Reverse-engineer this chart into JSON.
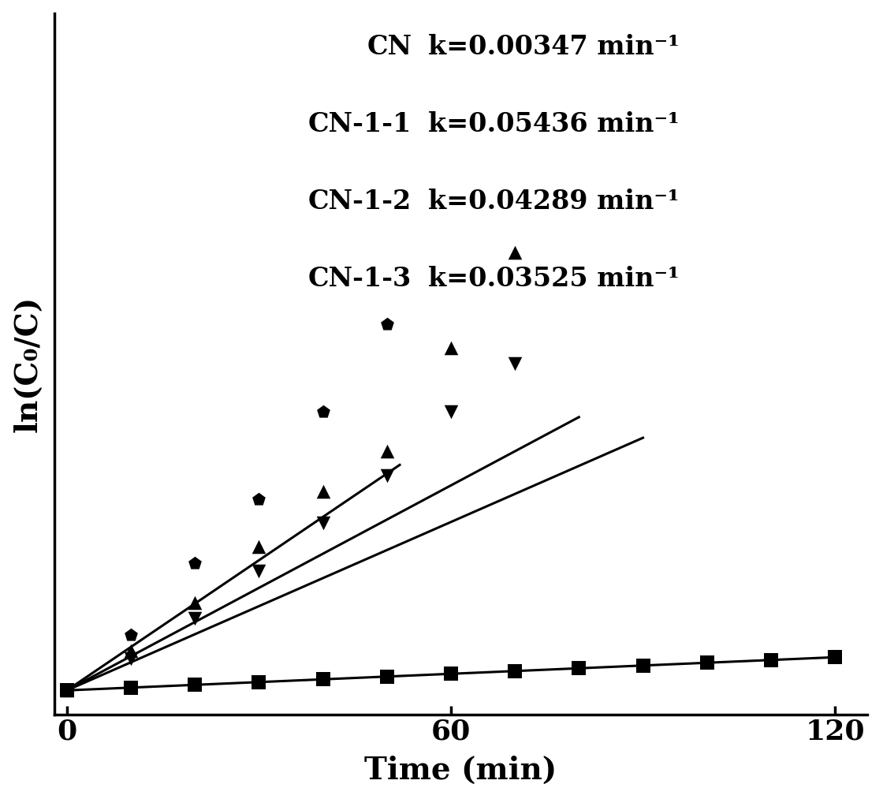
{
  "title": "",
  "xlabel": "Time (min)",
  "ylabel": "ln(C₀/C)",
  "xlim": [
    -2,
    125
  ],
  "ylim": [
    -0.3,
    8.5
  ],
  "xticks": [
    0,
    60,
    120
  ],
  "series": [
    {
      "label": "CN",
      "k": 0.00347,
      "marker": "s",
      "color": "#000000",
      "data_x": [
        0,
        10,
        20,
        30,
        40,
        50,
        60,
        70,
        80,
        90,
        100,
        110,
        120
      ],
      "data_y": [
        0,
        0.035,
        0.07,
        0.104,
        0.139,
        0.174,
        0.208,
        0.243,
        0.278,
        0.312,
        0.347,
        0.382,
        0.416
      ],
      "line_x": [
        0,
        120
      ],
      "line_y": [
        0,
        0.416
      ]
    },
    {
      "label": "CN-1-1",
      "k": 0.05436,
      "marker": "p",
      "color": "#000000",
      "data_x": [
        0,
        10,
        20,
        30,
        40,
        50
      ],
      "data_y": [
        0,
        0.7,
        1.6,
        2.4,
        3.5,
        4.6
      ],
      "line_x": [
        0,
        52
      ],
      "line_y": [
        0,
        2.83
      ]
    },
    {
      "label": "CN-1-2",
      "k": 0.04289,
      "marker": "^",
      "color": "#000000",
      "data_x": [
        0,
        10,
        20,
        30,
        40,
        50,
        60,
        70
      ],
      "data_y": [
        0,
        0.5,
        1.1,
        1.8,
        2.5,
        3.0,
        4.3,
        5.5
      ],
      "line_x": [
        0,
        80
      ],
      "line_y": [
        0,
        3.43
      ]
    },
    {
      "label": "CN-1-3",
      "k": 0.03525,
      "marker": "v",
      "color": "#000000",
      "data_x": [
        0,
        10,
        20,
        30,
        40,
        50,
        60,
        70
      ],
      "data_y": [
        0,
        0.4,
        0.9,
        1.5,
        2.1,
        2.7,
        3.5,
        4.1
      ],
      "line_x": [
        0,
        90
      ],
      "line_y": [
        0,
        3.17
      ]
    }
  ],
  "legend_items": [
    [
      "CN",
      "k=0.00347 min⁻¹"
    ],
    [
      "CN-1-1",
      "k=0.05436 min⁻¹"
    ],
    [
      "CN-1-2",
      "k=0.04289 min⁻¹"
    ],
    [
      "CN-1-3",
      "k=0.03525 min⁻¹"
    ]
  ],
  "background_color": "#ffffff",
  "legend_fontsize": 24,
  "axis_fontsize": 28,
  "tick_fontsize": 26
}
